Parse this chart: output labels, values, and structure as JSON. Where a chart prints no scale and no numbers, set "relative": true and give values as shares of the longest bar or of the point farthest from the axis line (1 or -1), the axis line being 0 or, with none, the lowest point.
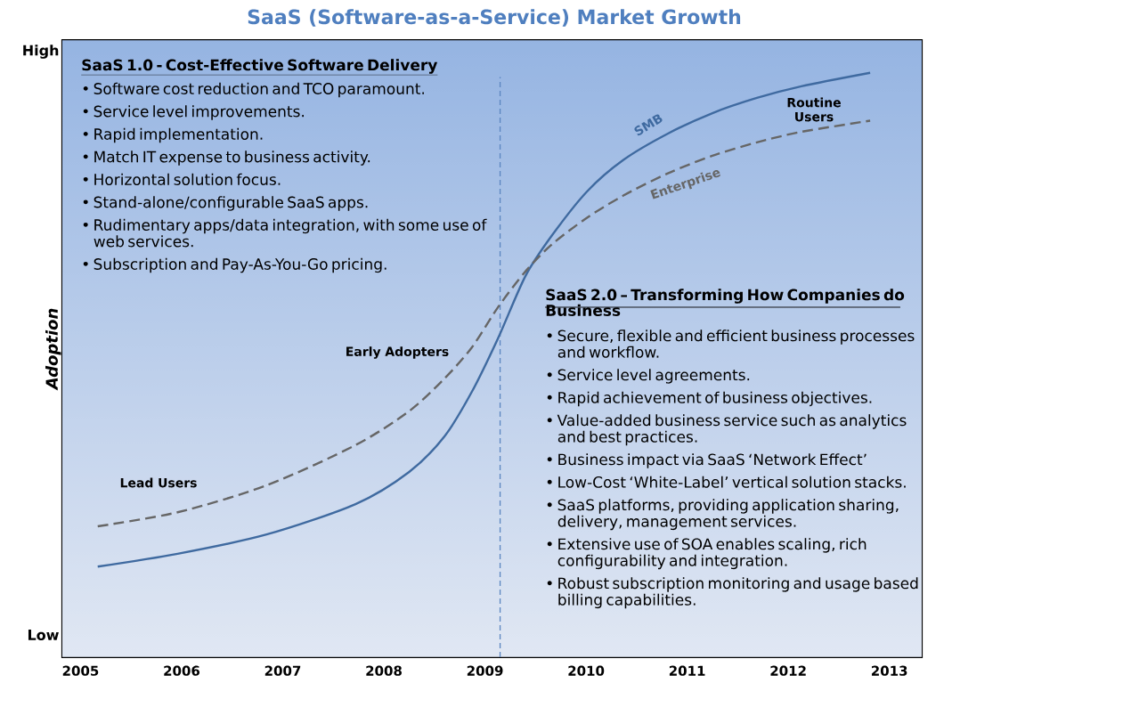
{
  "chart_data": {
    "type": "line",
    "title": "SaaS (Software-as-a-Service) Market Growth",
    "ylabel": "Adoption",
    "relative": true,
    "x": [
      2005.17,
      2005.96,
      2006.84,
      2007.72,
      2008.25,
      2008.6,
      2008.87,
      2009.13,
      2009.4,
      2009.66,
      2010.01,
      2010.37,
      2010.81,
      2011.25,
      2011.69,
      2012.13,
      2012.81
    ],
    "series": [
      {
        "name": "SMB",
        "color": "#3f6aa0",
        "line_style": "solid",
        "values": [
          0.155,
          0.177,
          0.21,
          0.262,
          0.317,
          0.378,
          0.454,
          0.546,
          0.652,
          0.721,
          0.797,
          0.851,
          0.896,
          0.931,
          0.957,
          0.977,
          1
        ]
      },
      {
        "name": "Enterprise",
        "color": "#666666",
        "line_style": "dashed",
        "values": [
          0.224,
          0.248,
          0.294,
          0.363,
          0.421,
          0.477,
          0.53,
          0.599,
          0.66,
          0.706,
          0.752,
          0.79,
          0.828,
          0.858,
          0.881,
          0.899,
          0.918
        ]
      }
    ],
    "xlim": [
      2004.82,
      2013.32
    ],
    "xticks": [
      2005,
      2006,
      2007,
      2008,
      2009,
      2010,
      2011,
      2012,
      2013
    ],
    "ref_lines": [
      {
        "axis": "x",
        "value": 2009.15,
        "color": "#5b86c0",
        "line_style": "dashed"
      }
    ],
    "marker": "none",
    "annotations": [
      "SaaS 1.0 - Cost-Effective Software Delivery",
      "• Software cost reduction and TCO paramount.",
      "• Service level improvements.",
      "• Rapid implementation.",
      "• Match IT expense to business activity.",
      "• Horizontal solution focus.",
      "• Stand-alone/configurable SaaS apps.",
      "• Rudimentary apps/data integration, with some use of web services.",
      "• Subscription and Pay-As-You-Go pricing.",
      "SaaS 2.0 – Transforming How Companies do Business",
      "• Secure, flexible and efficient business processes and workflow.",
      "• Service level agreements.",
      "• Rapid achievement of business objectives.",
      "• Value-added business service such as analytics and best practices.",
      "• Business impact via SaaS ‘Network Effect’",
      "• Low-Cost ‘White-Label’ vertical solution stacks.",
      "• SaaS platforms, providing application sharing, delivery, management services.",
      "• Extensive use of SOA enables scaling, rich configurability and integration.",
      "• Robust subscription monitoring and usage based billing capabilities.",
      "Lead Users",
      "Early Adopters",
      "Routine Users",
      "High",
      "Low"
    ]
  }
}
